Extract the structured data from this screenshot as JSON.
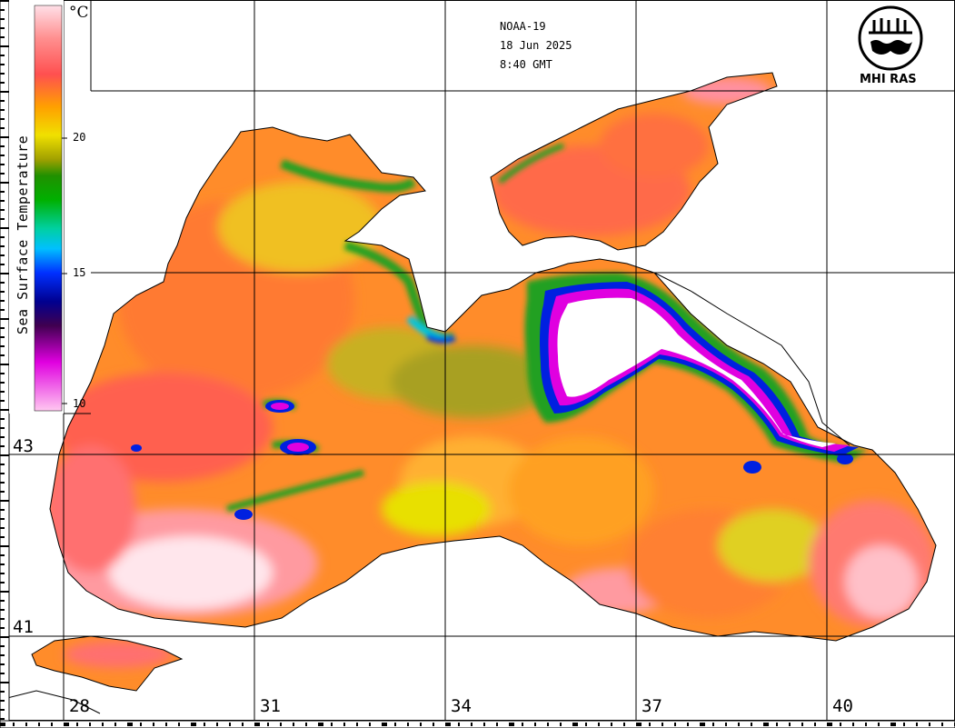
{
  "satellite": "NOAA-19",
  "date": "18 Jun 2025",
  "time": "8:40 GMT",
  "organization": "MHI RAS",
  "legend": {
    "title": "Sea Surface Temperature",
    "unit": "°C",
    "ticks": [
      "20",
      "15",
      "10"
    ],
    "colors": {
      "c10": "#ffc8f0",
      "c12": "#e000e0",
      "c13": "#400050",
      "c14": "#000090",
      "c15": "#0030ff",
      "c16": "#00c0ff",
      "c17": "#00d0a0",
      "c18": "#00b000",
      "c19": "#209000",
      "c20": "#a0a000",
      "c21": "#f0e000",
      "c22": "#ffa000",
      "c23": "#ff7020",
      "c24": "#ff5050",
      "c25": "#ff9090",
      "c26": "#ffe0e8"
    }
  },
  "latitude_labels": [
    "43",
    "41"
  ],
  "longitude_labels": [
    "28",
    "31",
    "34",
    "37",
    "40"
  ],
  "colors": {
    "land": "#ffffff",
    "coast": "#000000",
    "grid": "#000000",
    "warm_orange": "#ff8c2a",
    "warm_red": "#ff5a48",
    "hot_pink": "#ff9aa0",
    "hot_white": "#ffe6ec",
    "yellow": "#e8e000",
    "olive": "#a8a020",
    "green": "#20a020",
    "cyan": "#00c8e0",
    "blue": "#0020e0",
    "magenta": "#e000e0"
  }
}
